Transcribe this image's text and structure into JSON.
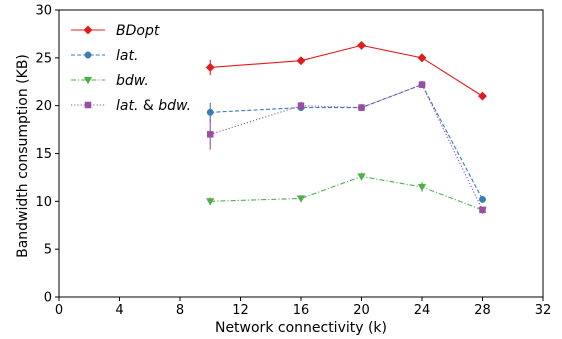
{
  "chart_data": {
    "type": "line",
    "xlabel": "Network connectivity (k)",
    "ylabel": "Bandwidth consumption (KB)",
    "xlim": [
      0,
      32
    ],
    "ylim": [
      0,
      30
    ],
    "xticks": [
      "0",
      "4",
      "8",
      "12",
      "16",
      "20",
      "24",
      "28",
      "32"
    ],
    "yticks": [
      "0",
      "5",
      "10",
      "15",
      "20",
      "25",
      "30"
    ],
    "grid": false,
    "legend_position": "top-left",
    "x": [
      10,
      16,
      20,
      24,
      28
    ],
    "series": [
      {
        "name": "BDopt",
        "values": [
          24.0,
          24.7,
          26.3,
          25.0,
          21.0
        ],
        "error": [
          0.8,
          0.2,
          0.2,
          0.2,
          0.1
        ],
        "color": "#e41a1c",
        "marker": "diamond",
        "dash": "solid"
      },
      {
        "name": "lat.",
        "values": [
          19.3,
          19.8,
          19.8,
          22.2,
          10.2
        ],
        "error": [
          1.0,
          0.3,
          0.2,
          0.3,
          0.1
        ],
        "color": "#377eb8",
        "marker": "circle",
        "dash": "dashed"
      },
      {
        "name": "bdw.",
        "values": [
          10.0,
          10.3,
          12.6,
          11.5,
          9.1
        ],
        "error": [
          0.4,
          0.2,
          0.4,
          0.5,
          0.1
        ],
        "color": "#4daf4a",
        "marker": "triangle-down",
        "dash": "dashdot"
      },
      {
        "name": "lat. & bdw.",
        "name_parts": [
          "lat.",
          " & ",
          "bdw."
        ],
        "values": [
          17.0,
          20.0,
          19.8,
          22.2,
          9.1
        ],
        "error": [
          1.6,
          0.4,
          0.2,
          0.3,
          0.1
        ],
        "color": "#984ea3",
        "marker": "square",
        "dash": "dotted"
      }
    ]
  }
}
